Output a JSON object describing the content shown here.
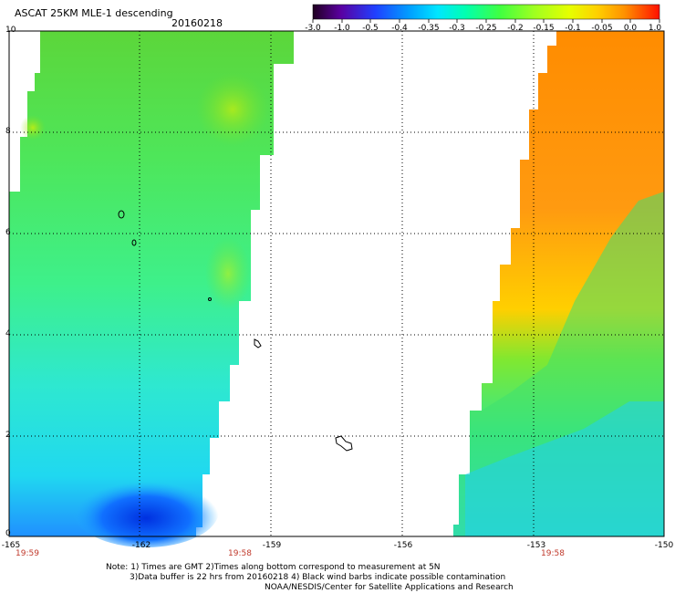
{
  "title": {
    "product": "ASCAT 25KM MLE-1 descending",
    "date": "20160218"
  },
  "colorbar": {
    "labels": [
      "-3.0",
      "-1.0",
      "-0.5",
      "-0.4",
      "-0.35",
      "-0.3",
      "-0.25",
      "-0.2",
      "-0.15",
      "-0.1",
      "-0.05",
      "0.0",
      "1.0"
    ],
    "colors": [
      "#200020",
      "#5a00a0",
      "#2040ff",
      "#00a0ff",
      "#00e6ff",
      "#00ffb0",
      "#40ff40",
      "#a0ff20",
      "#e6ff00",
      "#ffd000",
      "#ff9000",
      "#ff4000",
      "#ff1000"
    ]
  },
  "axes": {
    "y_ticks": [
      "10",
      "8",
      "6",
      "4",
      "2",
      "0"
    ],
    "x_ticks": [
      "-165",
      "-162",
      "-159",
      "-156",
      "-153",
      "-150"
    ],
    "time_labels": [
      "19:59",
      "19:58",
      "19:58"
    ]
  },
  "notes": {
    "line1": "Note: 1) Times are GMT 2)Times along bottom correspond to measurement at 5N",
    "line2": "3)Data buffer is 22 hrs from 20160218 4) Black wind barbs indicate possible contamination",
    "line3": "NOAA/NESDIS/Center for Satellite Applications and Research"
  }
}
